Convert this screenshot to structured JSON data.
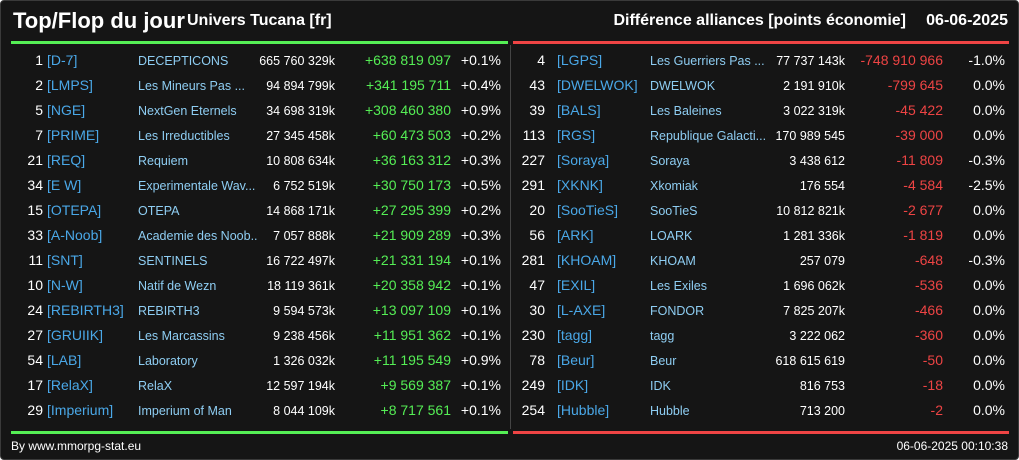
{
  "header": {
    "title": "Top/Flop du jour",
    "subtitle": "Univers Tucana [fr]",
    "heading": "Différence alliances [points économie]",
    "date": "06-06-2025"
  },
  "colors": {
    "gain": "#55ee55",
    "loss": "#ee4444",
    "tag": "#4aa8e8",
    "name": "#8ecdf2"
  },
  "top": [
    {
      "rank": "1",
      "tag": "[D-7]",
      "name": "DECEPTICONS",
      "points": "665 760 329k",
      "diff": "+638 819 097",
      "pct": "+0.1%"
    },
    {
      "rank": "2",
      "tag": "[LMPS]",
      "name": "Les Mineurs Pas ...",
      "points": "94 894 799k",
      "diff": "+341 195 711",
      "pct": "+0.4%"
    },
    {
      "rank": "5",
      "tag": "[NGE]",
      "name": "NextGen Eternels",
      "points": "34 698 319k",
      "diff": "+308 460 380",
      "pct": "+0.9%"
    },
    {
      "rank": "7",
      "tag": "[PRIME]",
      "name": "Les Irreductibles",
      "points": "27 345 458k",
      "diff": "+60 473 503",
      "pct": "+0.2%"
    },
    {
      "rank": "21",
      "tag": "[REQ]",
      "name": "Requiem",
      "points": "10 808 634k",
      "diff": "+36 163 312",
      "pct": "+0.3%"
    },
    {
      "rank": "34",
      "tag": "[E W]",
      "name": "Experimentale Wav...",
      "points": "6 752 519k",
      "diff": "+30 750 173",
      "pct": "+0.5%"
    },
    {
      "rank": "15",
      "tag": "[OTEPA]",
      "name": "OTEPA",
      "points": "14 868 171k",
      "diff": "+27 295 399",
      "pct": "+0.2%"
    },
    {
      "rank": "33",
      "tag": "[A-Noob]",
      "name": "Academie des Noob...",
      "points": "7 057 888k",
      "diff": "+21 909 289",
      "pct": "+0.3%"
    },
    {
      "rank": "11",
      "tag": "[SNT]",
      "name": "SENTINELS",
      "points": "16 722 497k",
      "diff": "+21 331 194",
      "pct": "+0.1%"
    },
    {
      "rank": "10",
      "tag": "[N-W]",
      "name": "Natif de Wezn",
      "points": "18 119 361k",
      "diff": "+20 358 942",
      "pct": "+0.1%"
    },
    {
      "rank": "24",
      "tag": "[REBIRTH3]",
      "name": "REBIRTH3",
      "points": "9 594 573k",
      "diff": "+13 097 109",
      "pct": "+0.1%"
    },
    {
      "rank": "27",
      "tag": "[GRUIIK]",
      "name": "Les Marcassins",
      "points": "9 238 456k",
      "diff": "+11 951 362",
      "pct": "+0.1%"
    },
    {
      "rank": "54",
      "tag": "[LAB]",
      "name": "Laboratory",
      "points": "1 326 032k",
      "diff": "+11 195 549",
      "pct": "+0.9%"
    },
    {
      "rank": "17",
      "tag": "[RelaX]",
      "name": "RelaX",
      "points": "12 597 194k",
      "diff": "+9 569 387",
      "pct": "+0.1%"
    },
    {
      "rank": "29",
      "tag": "[Imperium]",
      "name": "Imperium of Man",
      "points": "8 044 109k",
      "diff": "+8 717 561",
      "pct": "+0.1%"
    }
  ],
  "flop": [
    {
      "rank": "4",
      "tag": "[LGPS]",
      "name": "Les Guerriers Pas ...",
      "points": "77 737 143k",
      "diff": "-748 910 966",
      "pct": "-1.0%"
    },
    {
      "rank": "43",
      "tag": "[DWELWOK]",
      "name": "DWELWOK",
      "points": "2 191 910k",
      "diff": "-799 645",
      "pct": "0.0%"
    },
    {
      "rank": "39",
      "tag": "[BALS]",
      "name": "Les Baleines",
      "points": "3 022 319k",
      "diff": "-45 422",
      "pct": "0.0%"
    },
    {
      "rank": "113",
      "tag": "[RGS]",
      "name": "Republique Galacti...",
      "points": "170 989 545",
      "diff": "-39 000",
      "pct": "0.0%"
    },
    {
      "rank": "227",
      "tag": "[Soraya]",
      "name": "Soraya",
      "points": "3 438 612",
      "diff": "-11 809",
      "pct": "-0.3%"
    },
    {
      "rank": "291",
      "tag": "[XKNK]",
      "name": "Xkomiak",
      "points": "176 554",
      "diff": "-4 584",
      "pct": "-2.5%"
    },
    {
      "rank": "20",
      "tag": "[SooTieS]",
      "name": "SooTieS",
      "points": "10 812 821k",
      "diff": "-2 677",
      "pct": "0.0%"
    },
    {
      "rank": "56",
      "tag": "[ARK]",
      "name": "LOARK",
      "points": "1 281 336k",
      "diff": "-1 819",
      "pct": "0.0%"
    },
    {
      "rank": "281",
      "tag": "[KHOAM]",
      "name": "KHOAM",
      "points": "257 079",
      "diff": "-648",
      "pct": "-0.3%"
    },
    {
      "rank": "47",
      "tag": "[EXIL]",
      "name": "Les Exiles",
      "points": "1 696 062k",
      "diff": "-536",
      "pct": "0.0%"
    },
    {
      "rank": "30",
      "tag": "[L-AXE]",
      "name": "FONDOR",
      "points": "7 825 207k",
      "diff": "-466",
      "pct": "0.0%"
    },
    {
      "rank": "230",
      "tag": "[tagg]",
      "name": "tagg",
      "points": "3 222 062",
      "diff": "-360",
      "pct": "0.0%"
    },
    {
      "rank": "78",
      "tag": "[Beur]",
      "name": "Beur",
      "points": "618 615 619",
      "diff": "-50",
      "pct": "0.0%"
    },
    {
      "rank": "249",
      "tag": "[IDK]",
      "name": "IDK",
      "points": "816 753",
      "diff": "-18",
      "pct": "0.0%"
    },
    {
      "rank": "254",
      "tag": "[Hubble]",
      "name": "Hubble",
      "points": "713 200",
      "diff": "-2",
      "pct": "0.0%"
    }
  ],
  "footer": {
    "source": "By www.mmorpg-stat.eu",
    "timestamp": "06-06-2025 00:10:38"
  }
}
